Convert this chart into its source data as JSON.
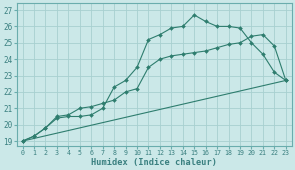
{
  "xlabel": "Humidex (Indice chaleur)",
  "bg_color": "#cbe8e8",
  "grid_color": "#a8d0d0",
  "line_color": "#2e7d6e",
  "spine_color": "#6aadad",
  "tick_color": "#3a8080",
  "xlim": [
    -0.5,
    23.5
  ],
  "ylim": [
    18.7,
    27.4
  ],
  "xticks": [
    0,
    1,
    2,
    3,
    4,
    5,
    6,
    7,
    8,
    9,
    10,
    11,
    12,
    13,
    14,
    15,
    16,
    17,
    18,
    19,
    20,
    21,
    22,
    23
  ],
  "yticks": [
    19,
    20,
    21,
    22,
    23,
    24,
    25,
    26,
    27
  ],
  "line1_x": [
    0,
    1,
    2,
    3,
    4,
    5,
    6,
    7,
    8,
    9,
    10,
    11,
    12,
    13,
    14,
    15,
    16,
    17,
    18,
    19,
    20,
    21,
    22,
    23
  ],
  "line1_y": [
    19.0,
    19.3,
    19.8,
    20.4,
    20.5,
    20.5,
    20.6,
    21.0,
    22.3,
    22.7,
    23.5,
    25.2,
    25.5,
    25.9,
    26.0,
    26.7,
    26.3,
    26.0,
    26.0,
    25.9,
    25.0,
    24.3,
    23.2,
    22.7
  ],
  "line2_x": [
    0,
    1,
    2,
    3,
    4,
    5,
    6,
    7,
    8,
    9,
    10,
    11,
    12,
    13,
    14,
    15,
    16,
    17,
    18,
    19,
    20,
    21,
    22,
    23
  ],
  "line2_y": [
    19.0,
    19.3,
    19.8,
    20.5,
    20.6,
    21.0,
    21.1,
    21.3,
    21.5,
    22.0,
    22.2,
    23.5,
    24.0,
    24.2,
    24.3,
    24.4,
    24.5,
    24.7,
    24.9,
    25.0,
    25.4,
    25.5,
    24.8,
    22.7
  ],
  "line3_x": [
    0,
    23
  ],
  "line3_y": [
    19.0,
    22.7
  ]
}
